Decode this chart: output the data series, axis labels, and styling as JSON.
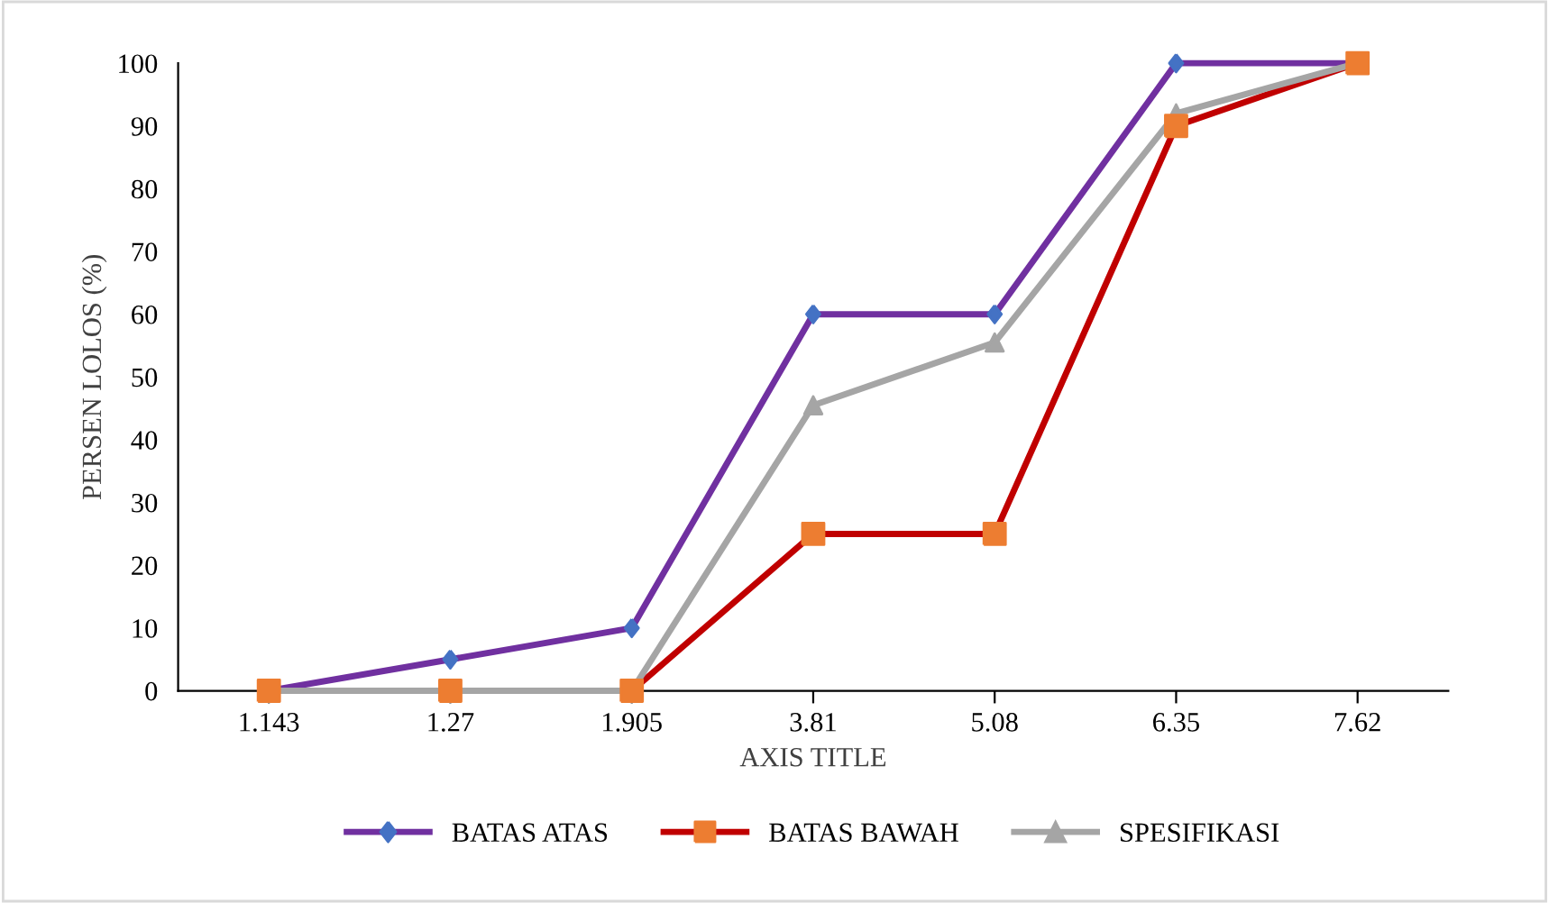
{
  "chart_data": {
    "type": "line",
    "xlabel": "AXIS TITLE",
    "ylabel": "PERSEN LOLOS (%)",
    "categories": [
      "1.143",
      "1.27",
      "1.905",
      "3.81",
      "5.08",
      "6.35",
      "7.62"
    ],
    "series": [
      {
        "name": "BATAS ATAS",
        "color": "#7030a0",
        "marker": "diamond",
        "colors": [
          "#4472c4",
          "#4472c4",
          "#4472c4",
          "#4472c4",
          "#4472c4",
          "#4472c4",
          "#4472c4"
        ],
        "values": [
          0,
          5,
          10,
          60,
          60,
          100,
          100
        ]
      },
      {
        "name": "BATAS BAWAH",
        "color": "#c00000",
        "marker": "square",
        "colors": [
          "#ed7d31",
          "#ed7d31",
          "#ed7d31",
          "#ed7d31",
          "#ed7d31",
          "#ed7d31",
          "#ed7d31"
        ],
        "values": [
          0,
          0,
          0,
          25,
          25,
          90,
          100
        ]
      },
      {
        "name": "SPESIFIKASI",
        "color": "#a5a5a5",
        "marker": "triangle",
        "colors": [
          "#a5a5a5",
          "#a5a5a5",
          "#a5a5a5",
          "#a5a5a5",
          "#a5a5a5",
          "#a5a5a5",
          "#a5a5a5"
        ],
        "values": [
          0,
          0,
          0,
          45.5,
          55.5,
          92,
          100
        ]
      }
    ],
    "ylim": [
      0,
      100
    ],
    "yticks": [
      0,
      10,
      20,
      30,
      40,
      50,
      60,
      70,
      80,
      90,
      100
    ],
    "grid": false,
    "legend": "bottom",
    "line_style": "solid"
  }
}
